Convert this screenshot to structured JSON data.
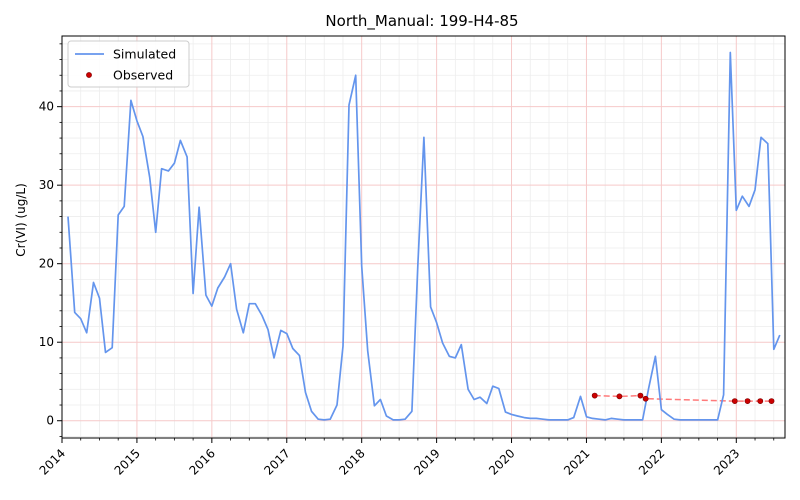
{
  "chart_data": {
    "type": "line",
    "title": "North_Manual: 199-H4-85",
    "xlabel": "",
    "ylabel": "Cr(VI) (ug/L)",
    "xlim": [
      2014.0,
      2023.65
    ],
    "ylim": [
      -2.2,
      49.0
    ],
    "x_ticks": [
      2014,
      2015,
      2016,
      2017,
      2018,
      2019,
      2020,
      2021,
      2022,
      2023
    ],
    "x_tick_labels": [
      "2014",
      "2015",
      "2016",
      "2017",
      "2018",
      "2019",
      "2020",
      "2021",
      "2022",
      "2023"
    ],
    "y_ticks": [
      0,
      10,
      20,
      30,
      40
    ],
    "y_tick_labels": [
      "0",
      "10",
      "20",
      "30",
      "40"
    ],
    "grid": true,
    "legend_position": "upper-left",
    "colors": {
      "simulated": "#6495ed",
      "observed": "#cc0000",
      "observed_trend": "#ff7a7a",
      "grid_major": "#f6c9c9",
      "grid_minor": "#ededed"
    },
    "series": [
      {
        "name": "Simulated",
        "kind": "line",
        "x": [
          2014.08,
          2014.17,
          2014.25,
          2014.33,
          2014.42,
          2014.5,
          2014.58,
          2014.67,
          2014.75,
          2014.83,
          2014.92,
          2015.0,
          2015.08,
          2015.17,
          2015.25,
          2015.33,
          2015.42,
          2015.5,
          2015.58,
          2015.67,
          2015.75,
          2015.83,
          2015.92,
          2016.0,
          2016.08,
          2016.17,
          2016.25,
          2016.33,
          2016.42,
          2016.5,
          2016.58,
          2016.67,
          2016.75,
          2016.83,
          2016.92,
          2017.0,
          2017.08,
          2017.17,
          2017.25,
          2017.33,
          2017.42,
          2017.5,
          2017.58,
          2017.67,
          2017.75,
          2017.83,
          2017.92,
          2018.0,
          2018.08,
          2018.17,
          2018.25,
          2018.33,
          2018.42,
          2018.5,
          2018.58,
          2018.67,
          2018.75,
          2018.83,
          2018.92,
          2019.0,
          2019.08,
          2019.17,
          2019.25,
          2019.33,
          2019.42,
          2019.5,
          2019.58,
          2019.67,
          2019.75,
          2019.83,
          2019.92,
          2020.0,
          2020.08,
          2020.17,
          2020.25,
          2020.33,
          2020.42,
          2020.5,
          2020.58,
          2020.67,
          2020.75,
          2020.83,
          2020.92,
          2021.0,
          2021.08,
          2021.17,
          2021.25,
          2021.33,
          2021.42,
          2021.5,
          2021.58,
          2021.67,
          2021.75,
          2021.83,
          2021.92,
          2022.0,
          2022.08,
          2022.17,
          2022.25,
          2022.33,
          2022.42,
          2022.5,
          2022.58,
          2022.67,
          2022.75,
          2022.83,
          2022.92,
          2023.0,
          2023.08,
          2023.17,
          2023.25,
          2023.33,
          2023.42,
          2023.5
        ],
        "values": [
          26.0,
          13.8,
          13.0,
          11.2,
          17.6,
          15.6,
          8.7,
          9.3,
          26.2,
          27.3,
          40.8,
          38.2,
          36.2,
          31.0,
          24.0,
          32.1,
          31.8,
          32.8,
          35.7,
          33.6,
          16.2,
          27.2,
          16.0,
          14.6,
          16.9,
          18.3,
          20.0,
          14.2,
          11.2,
          14.9,
          14.9,
          13.4,
          11.6,
          8.0,
          11.5,
          11.1,
          9.2,
          8.3,
          3.6,
          1.2,
          0.2,
          0.1,
          0.2,
          2.0,
          9.5,
          40.2,
          44.0,
          19.7,
          8.9,
          1.9,
          2.7,
          0.6,
          0.1,
          0.1,
          0.2,
          1.2,
          20.0,
          36.1,
          14.5,
          12.5,
          9.9,
          8.2,
          8.0,
          9.7,
          4.0,
          2.7,
          3.0,
          2.2,
          4.4,
          4.1,
          1.1,
          0.8,
          0.6,
          0.4,
          0.3,
          0.3,
          0.2,
          0.1,
          0.1,
          0.1,
          0.1,
          0.4,
          3.1,
          0.5,
          0.3,
          0.2,
          0.1,
          0.3,
          0.2,
          0.1,
          0.1,
          0.1,
          0.1,
          4.1,
          8.2,
          1.4,
          0.8,
          0.2,
          0.1,
          0.1,
          0.1,
          0.1,
          0.1,
          0.1,
          0.1,
          3.3,
          46.9,
          26.8,
          28.6,
          27.3,
          29.4,
          36.1,
          35.3,
          9.1
        ],
        "x_extra": [
          2023.58
        ],
        "values_extra": [
          10.9
        ]
      },
      {
        "name": "Observed",
        "kind": "scatter",
        "x": [
          2021.11,
          2021.44,
          2021.72,
          2021.79,
          2022.98,
          2023.15,
          2023.32,
          2023.47
        ],
        "values": [
          3.2,
          3.1,
          3.2,
          2.8,
          2.5,
          2.5,
          2.5,
          2.5
        ]
      }
    ]
  },
  "legend": {
    "simulated_label": "Simulated",
    "observed_label": "Observed"
  }
}
